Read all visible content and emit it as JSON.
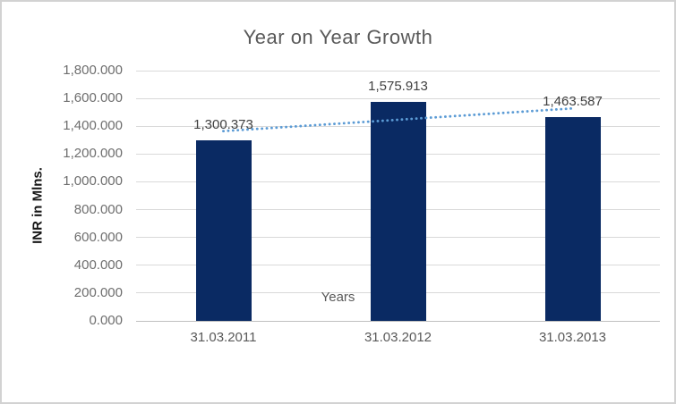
{
  "window": {
    "background": "#ffffff",
    "border_color": "#d2d2d2"
  },
  "chart_data": {
    "type": "bar",
    "title": "Year on Year Growth",
    "categories": [
      "31.03.2011",
      "31.03.2012",
      "31.03.2013"
    ],
    "values": [
      1300.373,
      1575.913,
      1463.587
    ],
    "data_labels": [
      "1,300.373",
      "1,575.913",
      "1,463.587"
    ],
    "xlabel": "Years",
    "ylabel": "INR in Mlns.",
    "ylim": [
      0,
      1800
    ],
    "ytick_step": 200,
    "ytick_labels": [
      "0.000",
      "200.000",
      "400.000",
      "600.000",
      "800.000",
      "1,000.000",
      "1,200.000",
      "1,400.000",
      "1,600.000",
      "1,800.000"
    ],
    "grid": true,
    "legend": "none",
    "colors": {
      "bar": "#0a2a63",
      "trendline": "#5b9bd5",
      "gridline": "#d9d9d9",
      "axis_line": "#bfbfbf",
      "title_text": "#595959",
      "tick_text": "#6e6e6e",
      "data_label_text": "#404040"
    },
    "trendline": {
      "type": "linear",
      "style": "dotted"
    }
  }
}
